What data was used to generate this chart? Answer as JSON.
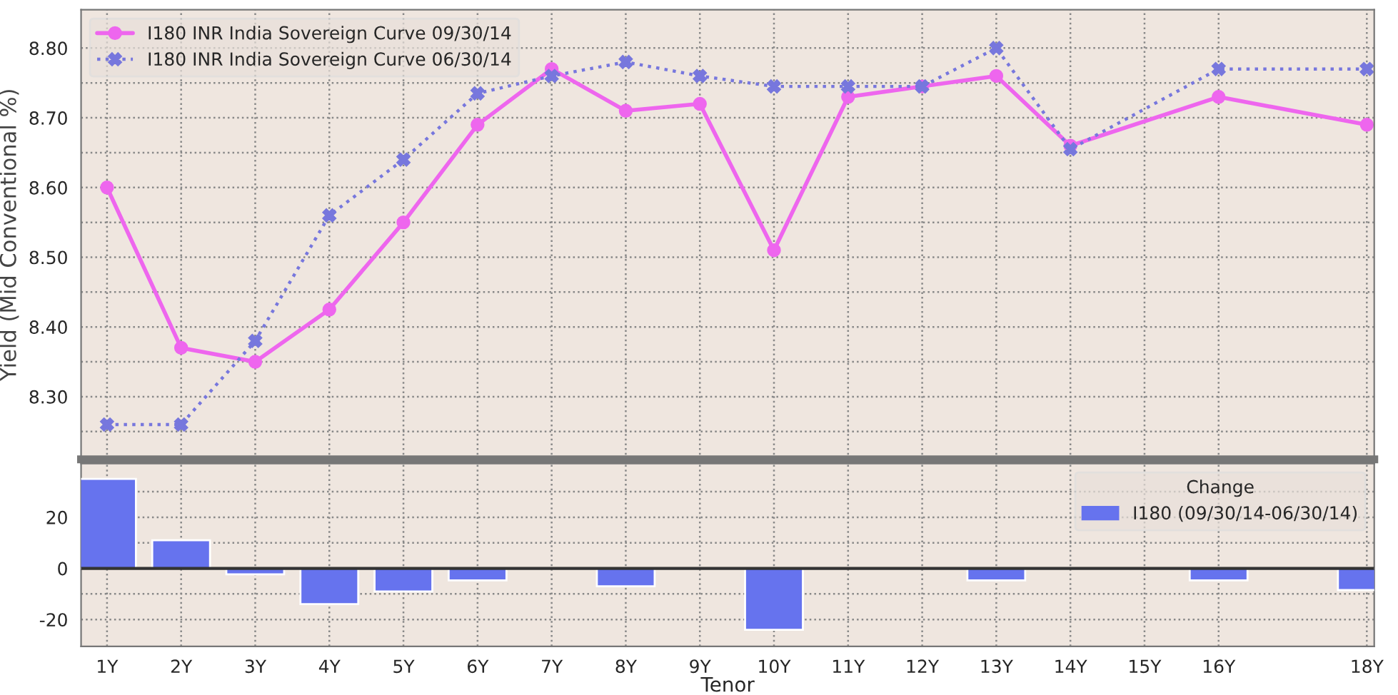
{
  "chart_data": [
    {
      "type": "line",
      "ylabel": "Yield (Mid Conventional %)",
      "x": [
        1,
        2,
        3,
        4,
        5,
        6,
        7,
        8,
        9,
        10,
        11,
        12,
        13,
        14,
        16,
        18
      ],
      "series": [
        {
          "name": "I180 INR India Sovereign Curve 09/30/14",
          "color": "#ee66ee",
          "line_style": "solid",
          "marker": "circle",
          "values": [
            8.6,
            8.37,
            8.35,
            8.425,
            8.55,
            8.69,
            8.77,
            8.71,
            8.72,
            8.51,
            8.73,
            8.745,
            8.76,
            8.66,
            8.73,
            8.69
          ]
        },
        {
          "name": "I180 INR India Sovereign Curve 06/30/14",
          "color": "#7777dd",
          "line_style": "dotted",
          "marker": "cross",
          "values": [
            8.26,
            8.26,
            8.38,
            8.56,
            8.64,
            8.735,
            8.76,
            8.78,
            8.76,
            8.745,
            8.745,
            8.745,
            8.8,
            8.655,
            8.77,
            8.77
          ]
        }
      ],
      "xlim": [
        0.65,
        18.1
      ],
      "xticks": [
        {
          "value": 1,
          "label": null
        },
        {
          "value": 2,
          "label": null
        },
        {
          "value": 3,
          "label": null
        },
        {
          "value": 4,
          "label": null
        },
        {
          "value": 5,
          "label": null
        },
        {
          "value": 6,
          "label": null
        },
        {
          "value": 7,
          "label": null
        },
        {
          "value": 8,
          "label": null
        },
        {
          "value": 9,
          "label": null
        },
        {
          "value": 10,
          "label": null
        },
        {
          "value": 11,
          "label": null
        },
        {
          "value": 12,
          "label": null
        },
        {
          "value": 13,
          "label": null
        },
        {
          "value": 14,
          "label": null
        },
        {
          "value": 15,
          "label": null
        },
        {
          "value": 16,
          "label": null
        },
        {
          "value": 18,
          "label": null
        }
      ],
      "ylim": [
        8.21,
        8.855
      ],
      "yticks": [
        {
          "value": 8.25,
          "label": null
        },
        {
          "value": 8.3,
          "label": "8.30"
        },
        {
          "value": 8.35,
          "label": null
        },
        {
          "value": 8.4,
          "label": "8.40"
        },
        {
          "value": 8.45,
          "label": null
        },
        {
          "value": 8.5,
          "label": "8.50"
        },
        {
          "value": 8.55,
          "label": null
        },
        {
          "value": 8.6,
          "label": "8.60"
        },
        {
          "value": 8.65,
          "label": null
        },
        {
          "value": 8.7,
          "label": "8.70"
        },
        {
          "value": 8.75,
          "label": null
        },
        {
          "value": 8.8,
          "label": "8.80"
        }
      ],
      "tick_labels": "y",
      "grid": true,
      "legend": "top left"
    },
    {
      "type": "bar",
      "xlabel": "Tenor",
      "legend_title": "Change",
      "x": [
        1,
        2,
        3,
        4,
        5,
        6,
        7,
        8,
        9,
        10,
        11,
        12,
        13,
        14,
        16,
        18
      ],
      "series": [
        {
          "name": "I180 (09/30/14-06/30/14)",
          "color": "#6673ee",
          "values": [
            35,
            11,
            -2.3,
            -14,
            -9,
            -4.7,
            null,
            -7,
            null,
            -24,
            null,
            null,
            -4.7,
            null,
            -4.7,
            -8.5
          ]
        }
      ],
      "xlim": [
        0.65,
        18.1
      ],
      "xticks": [
        {
          "value": 1,
          "label": "1Y"
        },
        {
          "value": 2,
          "label": "2Y"
        },
        {
          "value": 3,
          "label": "3Y"
        },
        {
          "value": 4,
          "label": "4Y"
        },
        {
          "value": 5,
          "label": "5Y"
        },
        {
          "value": 6,
          "label": "6Y"
        },
        {
          "value": 7,
          "label": "7Y"
        },
        {
          "value": 8,
          "label": "8Y"
        },
        {
          "value": 9,
          "label": "9Y"
        },
        {
          "value": 10,
          "label": "10Y"
        },
        {
          "value": 11,
          "label": "11Y"
        },
        {
          "value": 12,
          "label": "12Y"
        },
        {
          "value": 13,
          "label": "13Y"
        },
        {
          "value": 14,
          "label": "14Y"
        },
        {
          "value": 15,
          "label": "15Y"
        },
        {
          "value": 16,
          "label": "16Y"
        },
        {
          "value": 18,
          "label": "18Y"
        }
      ],
      "ylim": [
        -30.5,
        41
      ],
      "yticks": [
        {
          "value": -20,
          "label": "-20"
        },
        {
          "value": -10,
          "label": null
        },
        {
          "value": 0,
          "label": "0"
        },
        {
          "value": 10,
          "label": null
        },
        {
          "value": 20,
          "label": "20"
        },
        {
          "value": 30,
          "label": null
        }
      ],
      "grid": true,
      "legend": "top right"
    }
  ]
}
